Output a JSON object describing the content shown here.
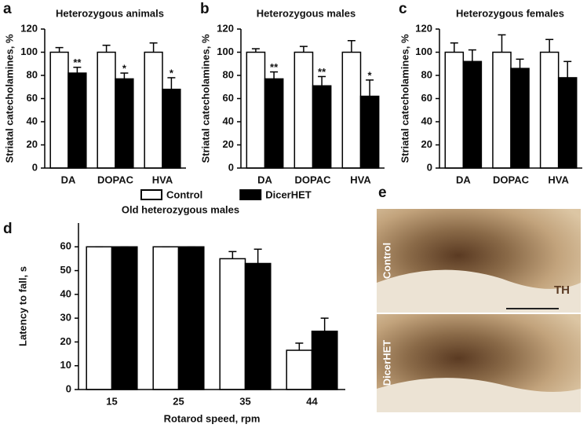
{
  "chart_data": [
    {
      "type": "bar",
      "panel": "a",
      "title": "Heterozygous animals",
      "ylabel": "Striatal catecholamines, %",
      "categories": [
        "DA",
        "DOPAC",
        "HVA"
      ],
      "series": [
        {
          "color": "#ffffff",
          "values": [
            100,
            100,
            100
          ],
          "errors": [
            4,
            6,
            8
          ]
        },
        {
          "color": "#000000",
          "values": [
            82,
            77,
            68
          ],
          "errors": [
            5,
            5,
            10
          ]
        }
      ],
      "annotations": [
        "**",
        "*",
        "*"
      ],
      "ylim": [
        0,
        120
      ],
      "yticks": [
        0,
        20,
        40,
        60,
        80,
        100,
        120
      ]
    },
    {
      "type": "bar",
      "panel": "b",
      "title": "Heterozygous males",
      "ylabel": "Striatal catecholamines, %",
      "categories": [
        "DA",
        "DOPAC",
        "HVA"
      ],
      "series": [
        {
          "color": "#ffffff",
          "values": [
            100,
            100,
            100
          ],
          "errors": [
            3,
            5,
            10
          ]
        },
        {
          "color": "#000000",
          "values": [
            77,
            71,
            62
          ],
          "errors": [
            6,
            8,
            14
          ]
        }
      ],
      "annotations": [
        "**",
        "**",
        "*"
      ],
      "ylim": [
        0,
        120
      ],
      "yticks": [
        0,
        20,
        40,
        60,
        80,
        100,
        120
      ]
    },
    {
      "type": "bar",
      "panel": "c",
      "title": "Heterozygous females",
      "ylabel": "Striatal catecholamines, %",
      "categories": [
        "DA",
        "DOPAC",
        "HVA"
      ],
      "series": [
        {
          "color": "#ffffff",
          "values": [
            100,
            100,
            100
          ],
          "errors": [
            8,
            15,
            11
          ]
        },
        {
          "color": "#000000",
          "values": [
            92,
            86,
            78
          ],
          "errors": [
            10,
            8,
            14
          ]
        }
      ],
      "ylim": [
        0,
        120
      ],
      "yticks": [
        0,
        20,
        40,
        60,
        80,
        100,
        120
      ]
    },
    {
      "type": "bar",
      "panel": "d",
      "title": "Old heterozygous males",
      "ylabel": "Latency to fall, s",
      "xlabel": "Rotarod speed, rpm",
      "categories": [
        "15",
        "25",
        "35",
        "44"
      ],
      "series": [
        {
          "name": "Control",
          "color": "#ffffff",
          "values": [
            60,
            60,
            55,
            16.5
          ],
          "errors": [
            0,
            0,
            3,
            3
          ]
        },
        {
          "name": "DicerHET",
          "color": "#000000",
          "values": [
            60,
            60,
            53,
            24.5
          ],
          "errors": [
            0,
            0,
            6,
            5.5
          ]
        }
      ],
      "legend": "top",
      "ylim": [
        0,
        70
      ],
      "yticks": [
        0,
        10,
        20,
        30,
        40,
        50,
        60
      ]
    }
  ],
  "panel_e": {
    "panel": "e",
    "labels": [
      "Control",
      "DicerHET"
    ],
    "marker": "TH"
  }
}
